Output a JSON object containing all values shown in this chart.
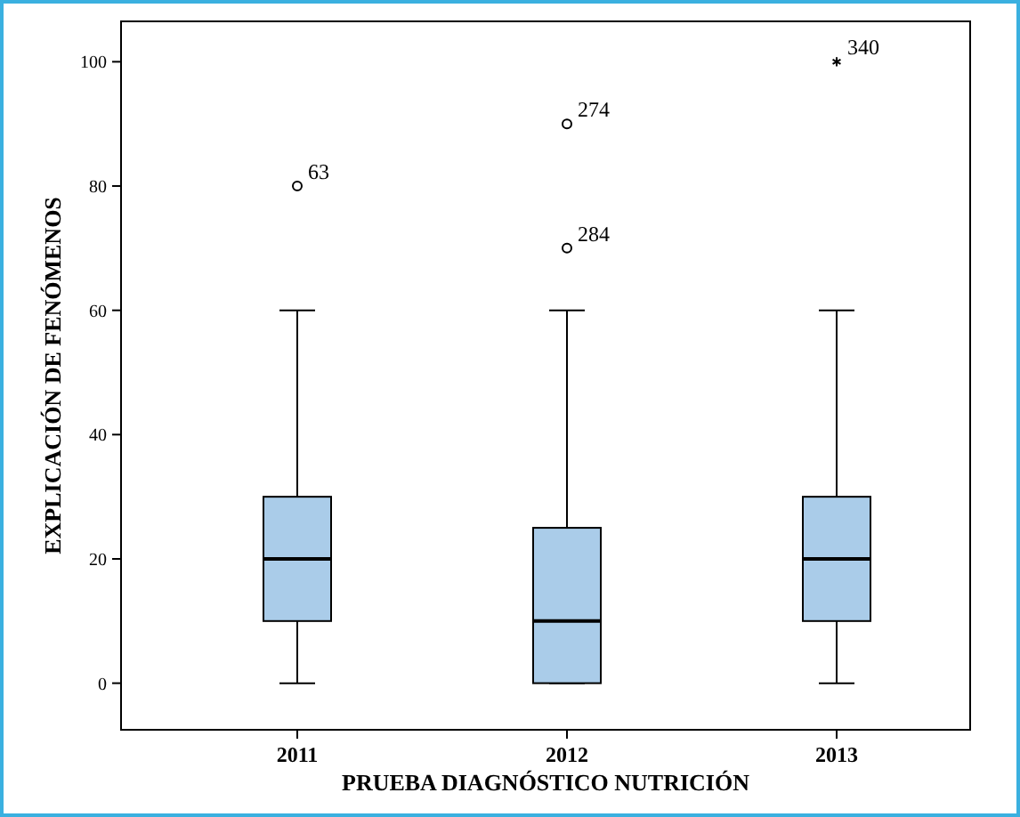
{
  "chart_data": {
    "type": "box",
    "xlabel": "PRUEBA DIAGNÓSTICO NUTRICIÓN",
    "ylabel": "EXPLICACIÓN DE FENÓMENOS",
    "categories": [
      "2011",
      "2012",
      "2013"
    ],
    "color": "#aacce9",
    "boxes": [
      {
        "low": 0,
        "q1": 10,
        "median": 20,
        "q3": 30,
        "high": 60,
        "outliers": [
          80
        ]
      },
      {
        "low": 0,
        "q1": 0,
        "median": 10,
        "q3": 25,
        "high": 60,
        "outliers": [
          70,
          90
        ]
      },
      {
        "low": 0,
        "q1": 10,
        "median": 20,
        "q3": 30,
        "high": 60,
        "outliers": [
          100
        ]
      }
    ],
    "ylim": [
      -7.5,
      106.5
    ],
    "yticks": [
      0,
      20,
      40,
      60,
      80,
      100
    ],
    "grid": false,
    "annotations": [
      "63",
      "284",
      "274",
      "340"
    ]
  }
}
